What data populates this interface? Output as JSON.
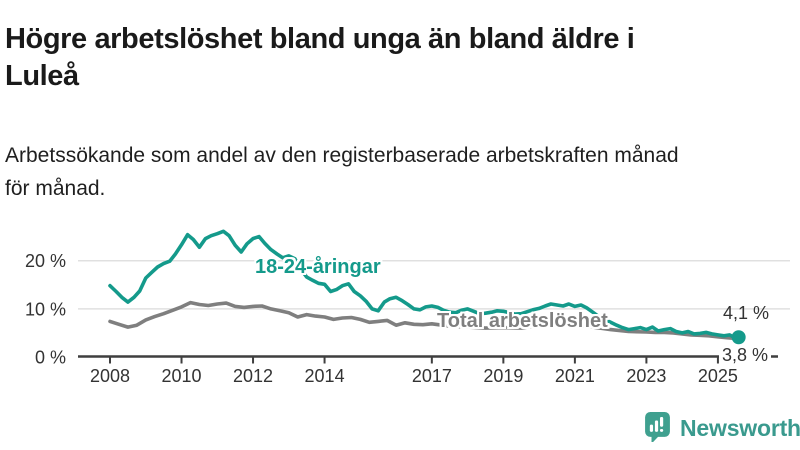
{
  "header": {
    "title_lines": [
      "Högre arbetslöshet bland unga än bland äldre i",
      "Luleå"
    ],
    "subtitle_lines": [
      "Arbetssökande som andel av den registerbaserade arbetskraften månad",
      "för månad."
    ]
  },
  "chart_data": {
    "type": "line",
    "title": "Högre arbetslöshet bland unga än bland äldre i Luleå",
    "subtitle": "Arbetssökande som andel av den registerbaserade arbetskraften månad för månad.",
    "unit": "%",
    "grid": "horizontal-only",
    "legend_position": "inline-labels",
    "ylim": [
      0,
      28
    ],
    "xlim_years": [
      2007.1,
      2026.9
    ],
    "x_ticks": [
      {
        "year": 2008,
        "label": "2008"
      },
      {
        "year": 2010,
        "label": "2010"
      },
      {
        "year": 2012,
        "label": "2012"
      },
      {
        "year": 2014,
        "label": "2014"
      },
      {
        "year": 2017,
        "label": "2017"
      },
      {
        "year": 2019,
        "label": "2019"
      },
      {
        "year": 2021,
        "label": "2021"
      },
      {
        "year": 2023,
        "label": "2023"
      },
      {
        "year": 2025,
        "label": "2025"
      }
    ],
    "y_ticks": [
      {
        "value": 0,
        "label": "0 %"
      },
      {
        "value": 10,
        "label": "10 %"
      },
      {
        "value": 20,
        "label": "20 %"
      }
    ],
    "series": [
      {
        "name": "18-24-åringar",
        "color": "#149a8b",
        "end_value": 4.1,
        "end_label": "4,1 %",
        "points": [
          [
            2008.0,
            14.8
          ],
          [
            2008.17,
            13.6
          ],
          [
            2008.33,
            12.4
          ],
          [
            2008.5,
            11.4
          ],
          [
            2008.67,
            12.4
          ],
          [
            2008.83,
            13.7
          ],
          [
            2009.0,
            16.4
          ],
          [
            2009.17,
            17.6
          ],
          [
            2009.33,
            18.7
          ],
          [
            2009.5,
            19.4
          ],
          [
            2009.67,
            19.9
          ],
          [
            2009.83,
            21.4
          ],
          [
            2010.0,
            23.3
          ],
          [
            2010.17,
            25.4
          ],
          [
            2010.33,
            24.4
          ],
          [
            2010.5,
            22.8
          ],
          [
            2010.67,
            24.6
          ],
          [
            2010.83,
            25.2
          ],
          [
            2011.0,
            25.6
          ],
          [
            2011.17,
            26.1
          ],
          [
            2011.33,
            25.2
          ],
          [
            2011.5,
            23.2
          ],
          [
            2011.67,
            21.8
          ],
          [
            2011.83,
            23.5
          ],
          [
            2012.0,
            24.6
          ],
          [
            2012.17,
            25.0
          ],
          [
            2012.33,
            23.6
          ],
          [
            2012.5,
            22.3
          ],
          [
            2012.67,
            21.4
          ],
          [
            2012.83,
            20.6
          ],
          [
            2013.0,
            21.0
          ],
          [
            2013.17,
            20.4
          ],
          [
            2013.33,
            18.3
          ],
          [
            2013.5,
            16.6
          ],
          [
            2013.67,
            15.9
          ],
          [
            2013.83,
            15.3
          ],
          [
            2014.0,
            15.1
          ],
          [
            2014.17,
            13.6
          ],
          [
            2014.33,
            14.0
          ],
          [
            2014.5,
            14.8
          ],
          [
            2014.67,
            15.2
          ],
          [
            2014.83,
            13.6
          ],
          [
            2015.0,
            12.7
          ],
          [
            2015.17,
            11.5
          ],
          [
            2015.33,
            10.0
          ],
          [
            2015.5,
            9.6
          ],
          [
            2015.67,
            11.4
          ],
          [
            2015.83,
            12.1
          ],
          [
            2016.0,
            12.4
          ],
          [
            2016.17,
            11.7
          ],
          [
            2016.33,
            10.9
          ],
          [
            2016.5,
            10.0
          ],
          [
            2016.67,
            9.8
          ],
          [
            2016.83,
            10.4
          ],
          [
            2017.0,
            10.6
          ],
          [
            2017.17,
            10.3
          ],
          [
            2017.33,
            9.7
          ],
          [
            2017.5,
            9.3
          ],
          [
            2017.67,
            9.2
          ],
          [
            2017.83,
            9.7
          ],
          [
            2018.0,
            10.0
          ],
          [
            2018.17,
            9.5
          ],
          [
            2018.33,
            9.0
          ],
          [
            2018.5,
            9.1
          ],
          [
            2018.67,
            9.3
          ],
          [
            2018.83,
            9.6
          ],
          [
            2019.0,
            9.5
          ],
          [
            2019.17,
            9.2
          ],
          [
            2019.33,
            8.9
          ],
          [
            2019.5,
            9.0
          ],
          [
            2019.67,
            9.4
          ],
          [
            2019.83,
            9.8
          ],
          [
            2020.0,
            10.1
          ],
          [
            2020.17,
            10.6
          ],
          [
            2020.33,
            11.0
          ],
          [
            2020.5,
            10.8
          ],
          [
            2020.67,
            10.6
          ],
          [
            2020.83,
            11.0
          ],
          [
            2021.0,
            10.5
          ],
          [
            2021.17,
            10.8
          ],
          [
            2021.33,
            10.2
          ],
          [
            2021.5,
            9.3
          ],
          [
            2021.67,
            8.4
          ],
          [
            2021.83,
            7.8
          ],
          [
            2022.0,
            7.2
          ],
          [
            2022.17,
            6.6
          ],
          [
            2022.33,
            6.1
          ],
          [
            2022.5,
            5.7
          ],
          [
            2022.67,
            5.9
          ],
          [
            2022.83,
            6.1
          ],
          [
            2023.0,
            5.7
          ],
          [
            2023.17,
            6.2
          ],
          [
            2023.33,
            5.4
          ],
          [
            2023.5,
            5.7
          ],
          [
            2023.67,
            5.9
          ],
          [
            2023.83,
            5.3
          ],
          [
            2024.0,
            5.0
          ],
          [
            2024.17,
            5.3
          ],
          [
            2024.33,
            4.8
          ],
          [
            2024.5,
            4.9
          ],
          [
            2024.67,
            5.1
          ],
          [
            2024.83,
            4.8
          ],
          [
            2025.0,
            4.6
          ],
          [
            2025.17,
            4.4
          ],
          [
            2025.33,
            4.6
          ],
          [
            2025.5,
            3.9
          ],
          [
            2025.58,
            4.1
          ]
        ]
      },
      {
        "name": "Total arbetslöshet",
        "color": "#7f7f7f",
        "end_value": 3.8,
        "end_label": "3,8 %",
        "points": [
          [
            2008.0,
            7.4
          ],
          [
            2008.25,
            6.8
          ],
          [
            2008.5,
            6.2
          ],
          [
            2008.75,
            6.6
          ],
          [
            2009.0,
            7.7
          ],
          [
            2009.25,
            8.4
          ],
          [
            2009.5,
            9.0
          ],
          [
            2009.75,
            9.7
          ],
          [
            2010.0,
            10.4
          ],
          [
            2010.25,
            11.3
          ],
          [
            2010.5,
            10.9
          ],
          [
            2010.75,
            10.7
          ],
          [
            2011.0,
            11.0
          ],
          [
            2011.25,
            11.2
          ],
          [
            2011.5,
            10.5
          ],
          [
            2011.75,
            10.3
          ],
          [
            2012.0,
            10.5
          ],
          [
            2012.25,
            10.6
          ],
          [
            2012.5,
            10.0
          ],
          [
            2012.75,
            9.6
          ],
          [
            2013.0,
            9.2
          ],
          [
            2013.25,
            8.3
          ],
          [
            2013.5,
            8.8
          ],
          [
            2013.75,
            8.5
          ],
          [
            2014.0,
            8.3
          ],
          [
            2014.25,
            7.8
          ],
          [
            2014.5,
            8.1
          ],
          [
            2014.75,
            8.2
          ],
          [
            2015.0,
            7.8
          ],
          [
            2015.25,
            7.2
          ],
          [
            2015.5,
            7.4
          ],
          [
            2015.75,
            7.6
          ],
          [
            2016.0,
            6.6
          ],
          [
            2016.25,
            7.1
          ],
          [
            2016.5,
            6.8
          ],
          [
            2016.75,
            6.7
          ],
          [
            2017.0,
            6.9
          ],
          [
            2017.5,
            6.4
          ],
          [
            2018.0,
            6.2
          ],
          [
            2018.5,
            6.0
          ],
          [
            2019.0,
            6.1
          ],
          [
            2019.5,
            6.0
          ],
          [
            2020.0,
            6.6
          ],
          [
            2020.5,
            7.2
          ],
          [
            2021.0,
            6.8
          ],
          [
            2021.5,
            6.2
          ],
          [
            2022.0,
            5.7
          ],
          [
            2022.5,
            5.3
          ],
          [
            2023.0,
            5.2
          ],
          [
            2023.25,
            5.1
          ],
          [
            2023.5,
            5.1
          ],
          [
            2023.75,
            5.0
          ],
          [
            2024.0,
            4.8
          ],
          [
            2024.25,
            4.6
          ],
          [
            2024.5,
            4.5
          ],
          [
            2024.75,
            4.4
          ],
          [
            2025.0,
            4.2
          ],
          [
            2025.25,
            4.0
          ],
          [
            2025.58,
            3.8
          ]
        ]
      }
    ],
    "colors": {
      "grid": "#e0e0e0",
      "axis": "#3f3f3f",
      "tick_label": "#333333",
      "annotation": "#333333"
    }
  },
  "branding": {
    "logo_text": "Newsworthy",
    "logo_color": "#3a9a8e",
    "icon": "newsworthy-bar-chart-bubble-icon",
    "icon_color": "#3fa08f"
  }
}
